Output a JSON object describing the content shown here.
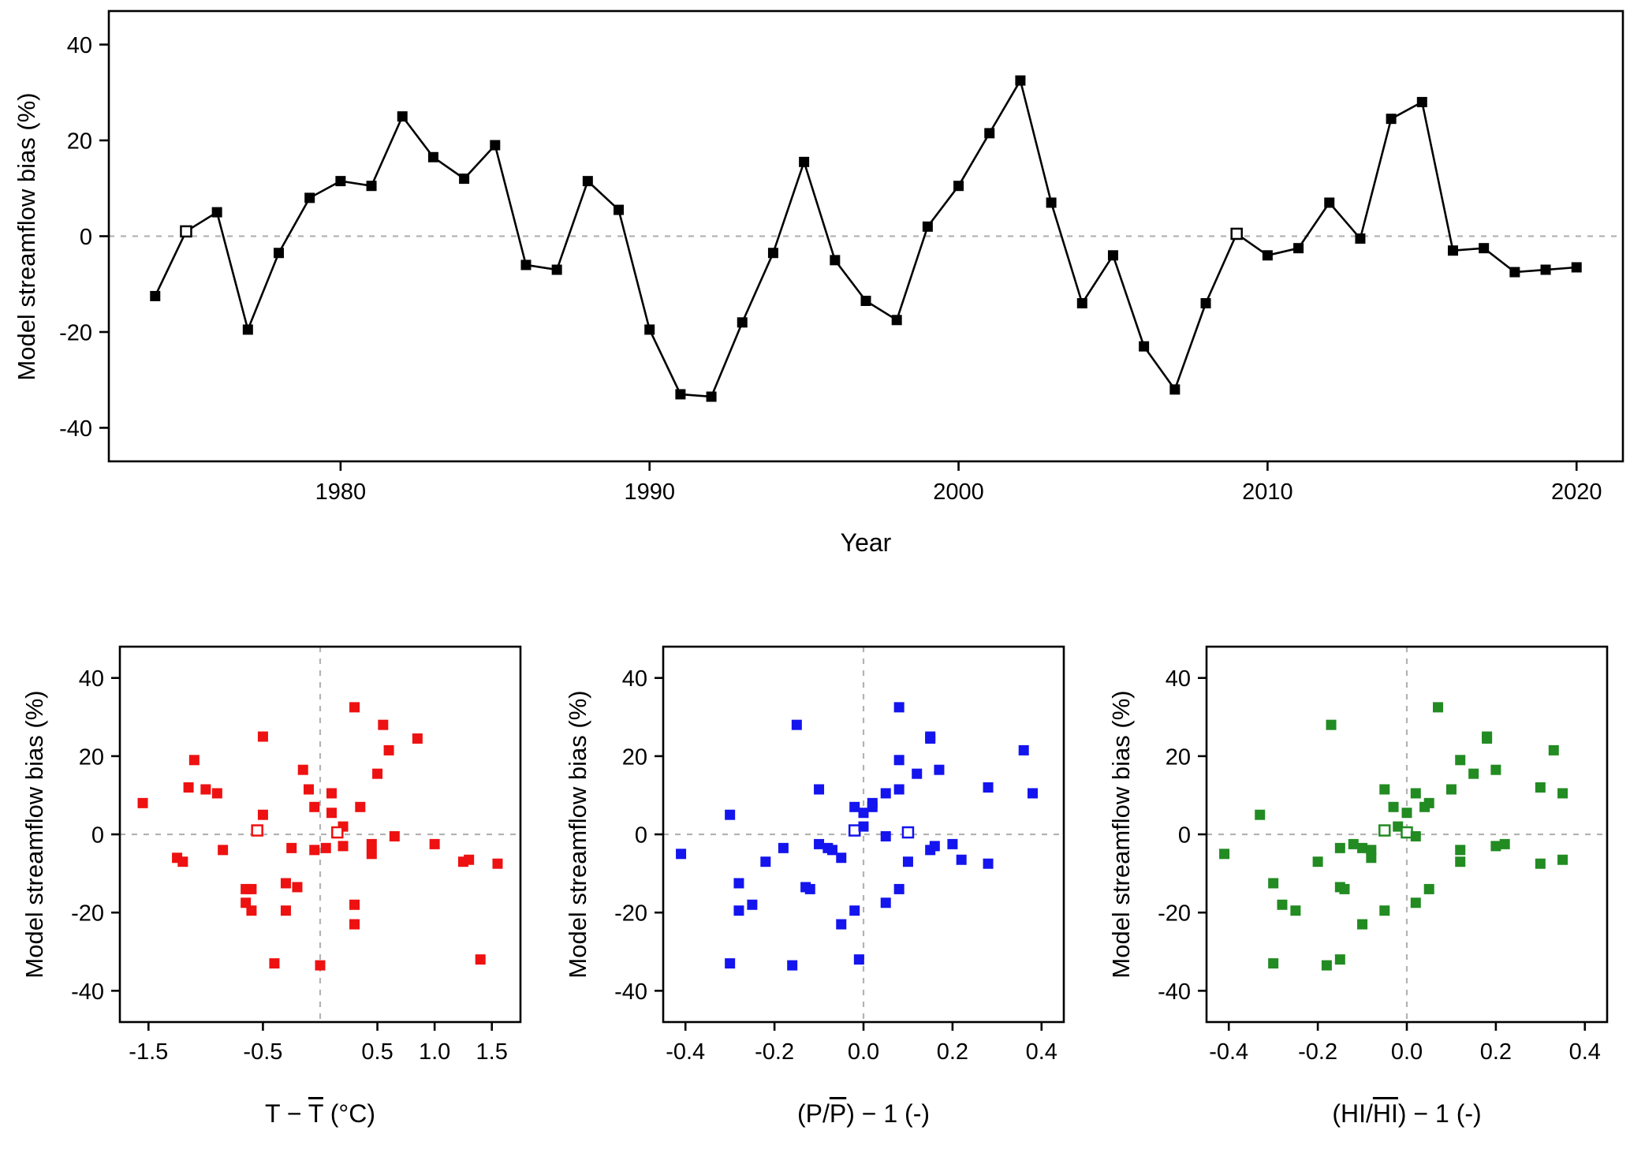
{
  "figure": {
    "background": "#ffffff",
    "grid_color": "#b3b3b3",
    "box_color": "#000000"
  },
  "chart_data": [
    {
      "id": "streamflow-bias-timeseries",
      "type": "line",
      "color": "#000000",
      "ylabel": "Model streamflow bias (%)",
      "xlabel_parts": {
        "pre": "Year",
        "over": "",
        "post": ""
      },
      "xlim": [
        1972.5,
        2021.5
      ],
      "ylim": [
        -47,
        47
      ],
      "xtick_values": [
        1980,
        1990,
        2000,
        2010,
        2020
      ],
      "xtick_labels": [
        "1980",
        "1990",
        "2000",
        "2010",
        "2020"
      ],
      "ytick_values": [
        -40,
        -20,
        0,
        20,
        40
      ],
      "ytick_labels": [
        "-40",
        "-20",
        "0",
        "20",
        "40"
      ],
      "zero_line_horizontal": true,
      "zero_line_vertical": false,
      "legend": "none",
      "grid": "dashed zero line only",
      "open_marker_years": [
        1975,
        2009
      ],
      "x": [
        1974,
        1975,
        1976,
        1977,
        1978,
        1979,
        1980,
        1981,
        1982,
        1983,
        1984,
        1985,
        1986,
        1987,
        1988,
        1989,
        1990,
        1991,
        1992,
        1993,
        1994,
        1995,
        1996,
        1997,
        1998,
        1999,
        2000,
        2001,
        2002,
        2003,
        2004,
        2005,
        2006,
        2007,
        2008,
        2009,
        2010,
        2011,
        2012,
        2013,
        2014,
        2015,
        2016,
        2017,
        2018,
        2019,
        2020
      ],
      "y": [
        -12.5,
        1,
        5,
        -19.5,
        -3.5,
        8,
        11.5,
        10.5,
        25,
        16.5,
        12,
        19,
        -6,
        -7,
        11.5,
        5.5,
        -19.5,
        -33,
        -33.5,
        -18,
        -3.5,
        15.5,
        -5,
        -13.5,
        -17.5,
        2,
        10.5,
        21.5,
        32.5,
        7,
        -14,
        -4,
        -23,
        -32,
        -14,
        0.5,
        -4,
        -2.5,
        7,
        -0.5,
        24.5,
        28,
        -3,
        -2.5,
        -7.5,
        -7,
        -6.5
      ]
    },
    {
      "id": "bias-vs-temperature-anomaly",
      "type": "scatter",
      "color": "#ee1111",
      "ylabel": "Model streamflow bias (%)",
      "xlabel_parts": {
        "pre": "T − ",
        "over": "T",
        "post": " (°C)"
      },
      "xlim": [
        -1.75,
        1.75
      ],
      "ylim": [
        -48,
        48
      ],
      "xtick_values": [
        -1.5,
        -0.5,
        0.5,
        1.0,
        1.5
      ],
      "xtick_labels": [
        "-1.5",
        "-0.5",
        "0.5",
        "1.0",
        "1.5"
      ],
      "ytick_values": [
        -40,
        -20,
        0,
        20,
        40
      ],
      "ytick_labels": [
        "-40",
        "-20",
        "0",
        "20",
        "40"
      ],
      "zero_line_horizontal": true,
      "zero_line_vertical": true,
      "x": [
        -0.3,
        -0.55,
        -0.5,
        -0.6,
        -0.25,
        -1.55,
        -1.0,
        -0.9,
        -0.5,
        -0.15,
        -1.15,
        -1.1,
        -1.25,
        -1.2,
        -0.1,
        0.1,
        -0.3,
        -0.4,
        0.0,
        0.3,
        0.05,
        0.5,
        0.45,
        -0.2,
        -0.65,
        0.2,
        0.1,
        0.6,
        0.3,
        0.35,
        -0.65,
        -0.05,
        0.3,
        1.4,
        -0.6,
        0.15,
        -0.85,
        0.45,
        -0.05,
        0.65,
        0.85,
        0.55,
        0.2,
        1.0,
        1.55,
        1.25,
        1.3
      ],
      "y": [
        -12.5,
        1,
        5,
        -19.5,
        -3.5,
        8,
        11.5,
        10.5,
        25,
        16.5,
        12,
        19,
        -6,
        -7,
        11.5,
        5.5,
        -19.5,
        -33,
        -33.5,
        -18,
        -3.5,
        15.5,
        -5,
        -13.5,
        -17.5,
        2,
        10.5,
        21.5,
        32.5,
        7,
        -14,
        -4,
        -23,
        -32,
        -14,
        0.5,
        -4,
        -2.5,
        7,
        -0.5,
        24.5,
        28,
        -3,
        -2.5,
        -7.5,
        -7,
        -6.5
      ]
    },
    {
      "id": "bias-vs-precipitation-anomaly",
      "type": "scatter",
      "color": "#1414ee",
      "ylabel": "Model streamflow bias (%)",
      "xlabel_parts": {
        "pre": "(P/",
        "over": "P",
        "post": ") − 1 (-)"
      },
      "xlim": [
        -0.45,
        0.45
      ],
      "ylim": [
        -48,
        48
      ],
      "xtick_values": [
        -0.4,
        -0.2,
        0.0,
        0.2,
        0.4
      ],
      "xtick_labels": [
        "-0.4",
        "-0.2",
        "0.0",
        "0.2",
        "0.4"
      ],
      "ytick_values": [
        -40,
        -20,
        0,
        20,
        40
      ],
      "ytick_labels": [
        "-40",
        "-20",
        "0",
        "20",
        "40"
      ],
      "zero_line_horizontal": true,
      "zero_line_vertical": true,
      "x": [
        -0.28,
        -0.02,
        -0.3,
        -0.28,
        -0.18,
        0.02,
        0.08,
        0.05,
        0.15,
        0.17,
        0.28,
        0.08,
        -0.05,
        -0.22,
        -0.1,
        0.0,
        -0.02,
        -0.3,
        -0.16,
        -0.25,
        -0.08,
        0.12,
        -0.41,
        -0.13,
        0.05,
        0.0,
        0.38,
        0.36,
        0.08,
        -0.02,
        -0.12,
        -0.07,
        -0.05,
        -0.01,
        0.08,
        0.1,
        0.15,
        -0.1,
        0.02,
        0.05,
        0.15,
        -0.15,
        0.16,
        0.2,
        0.28,
        0.1,
        0.22
      ],
      "y": [
        -12.5,
        1,
        5,
        -19.5,
        -3.5,
        8,
        11.5,
        10.5,
        25,
        16.5,
        12,
        19,
        -6,
        -7,
        11.5,
        5.5,
        -19.5,
        -33,
        -33.5,
        -18,
        -3.5,
        15.5,
        -5,
        -13.5,
        -17.5,
        2,
        10.5,
        21.5,
        32.5,
        7,
        -14,
        -4,
        -23,
        -32,
        -14,
        0.5,
        -4,
        -2.5,
        7,
        -0.5,
        24.5,
        28,
        -3,
        -2.5,
        -7.5,
        -7,
        -6.5
      ]
    },
    {
      "id": "bias-vs-humidity-index-anomaly",
      "type": "scatter",
      "color": "#228b22",
      "ylabel": "Model streamflow bias (%)",
      "xlabel_parts": {
        "pre": "(HI/",
        "over": "HI",
        "post": ") − 1 (-)"
      },
      "xlim": [
        -0.45,
        0.45
      ],
      "ylim": [
        -48,
        48
      ],
      "xtick_values": [
        -0.4,
        -0.2,
        0.0,
        0.2,
        0.4
      ],
      "xtick_labels": [
        "-0.4",
        "-0.2",
        "0.0",
        "0.2",
        "0.4"
      ],
      "ytick_values": [
        -40,
        -20,
        0,
        20,
        40
      ],
      "ytick_labels": [
        "-40",
        "-20",
        "0",
        "20",
        "40"
      ],
      "zero_line_horizontal": true,
      "zero_line_vertical": true,
      "x": [
        -0.3,
        -0.05,
        -0.33,
        -0.25,
        -0.15,
        0.05,
        0.1,
        0.02,
        0.18,
        0.2,
        0.3,
        0.12,
        -0.08,
        -0.2,
        -0.05,
        0.0,
        -0.05,
        -0.3,
        -0.18,
        -0.28,
        -0.1,
        0.15,
        -0.41,
        -0.15,
        0.02,
        -0.02,
        0.35,
        0.33,
        0.07,
        -0.03,
        -0.14,
        -0.08,
        -0.1,
        -0.15,
        0.05,
        0.0,
        0.12,
        -0.12,
        0.04,
        0.02,
        0.18,
        -0.17,
        0.2,
        0.22,
        0.3,
        0.12,
        0.35
      ],
      "y": [
        -12.5,
        1,
        5,
        -19.5,
        -3.5,
        8,
        11.5,
        10.5,
        25,
        16.5,
        12,
        19,
        -6,
        -7,
        11.5,
        5.5,
        -19.5,
        -33,
        -33.5,
        -18,
        -3.5,
        15.5,
        -5,
        -13.5,
        -17.5,
        2,
        10.5,
        21.5,
        32.5,
        7,
        -14,
        -4,
        -23,
        -32,
        -14,
        0.5,
        -4,
        -2.5,
        7,
        -0.5,
        24.5,
        28,
        -3,
        -2.5,
        -7.5,
        -7,
        -6.5
      ]
    }
  ]
}
